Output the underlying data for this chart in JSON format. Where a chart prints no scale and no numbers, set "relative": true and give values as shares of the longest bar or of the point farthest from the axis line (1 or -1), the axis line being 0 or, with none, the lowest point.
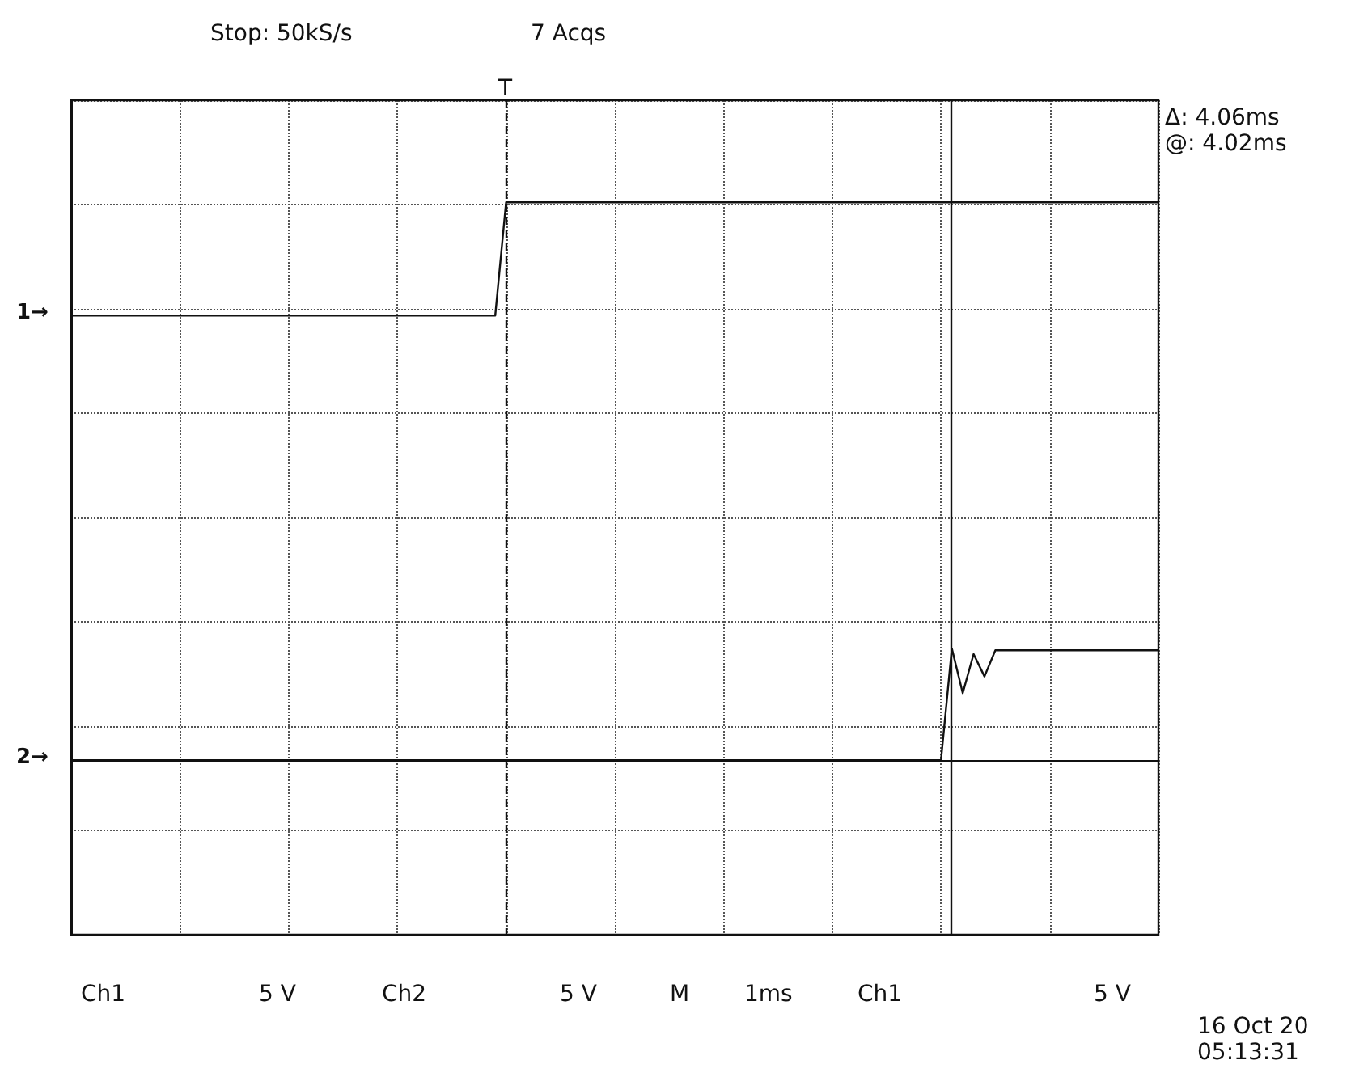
{
  "chart_data": {
    "type": "line",
    "relative": true,
    "categories": [
      null,
      null,
      null,
      null,
      null,
      null,
      null,
      null,
      null,
      null,
      null,
      null,
      null,
      null,
      null,
      null,
      null,
      null,
      null,
      null,
      null,
      null,
      null,
      null,
      null,
      null,
      null,
      null,
      null,
      null,
      null,
      null,
      null,
      null,
      null,
      null,
      null,
      null,
      null,
      null,
      null,
      null,
      null,
      null,
      null,
      null,
      null,
      null,
      null,
      null,
      null,
      null,
      null,
      null,
      null,
      null,
      null,
      null,
      null,
      null,
      null,
      null,
      null,
      null,
      null,
      null,
      null,
      null,
      null,
      null,
      null,
      null,
      null,
      null,
      null,
      null,
      null,
      null,
      null,
      null,
      null,
      null,
      null,
      null,
      null,
      null,
      null,
      null,
      null,
      null,
      null,
      null,
      null,
      null,
      null,
      null,
      null,
      null,
      null,
      null,
      null
    ],
    "grid": true,
    "legend": false,
    "marker": "none",
    "line_style": "solid",
    "series": [
      {
        "name": "1→",
        "color": "#111111",
        "values": [
          0.797,
          0.797,
          0.797,
          0.797,
          0.797,
          0.797,
          0.797,
          0.797,
          0.797,
          0.797,
          0.797,
          0.797,
          0.797,
          0.797,
          0.797,
          0.797,
          0.797,
          0.797,
          0.797,
          0.797,
          0.797,
          0.797,
          0.797,
          0.797,
          0.797,
          0.797,
          0.797,
          0.797,
          0.797,
          0.797,
          0.797,
          0.797,
          0.797,
          0.797,
          0.797,
          0.797,
          0.797,
          0.797,
          0.797,
          0.797,
          1,
          1,
          1,
          1,
          1,
          1,
          1,
          1,
          1,
          1,
          1,
          1,
          1,
          1,
          1,
          1,
          1,
          1,
          1,
          1,
          1,
          1,
          1,
          1,
          1,
          1,
          1,
          1,
          1,
          1,
          1,
          1,
          1,
          1,
          1,
          1,
          1,
          1,
          1,
          1,
          1,
          1,
          1,
          1,
          1,
          1,
          1,
          1,
          1,
          1,
          1,
          1,
          1,
          1,
          1,
          1,
          1,
          1,
          1,
          1,
          1
        ]
      },
      {
        "name": "2→",
        "color": "#111111",
        "values": [
          0,
          0,
          0,
          0,
          0,
          0,
          0,
          0,
          0,
          0,
          0,
          0,
          0,
          0,
          0,
          0,
          0,
          0,
          0,
          0,
          0,
          0,
          0,
          0,
          0,
          0,
          0,
          0,
          0,
          0,
          0,
          0,
          0,
          0,
          0,
          0,
          0,
          0,
          0,
          0,
          0,
          0,
          0,
          0,
          0,
          0,
          0,
          0,
          0,
          0,
          0,
          0,
          0,
          0,
          0,
          0,
          0,
          0,
          0,
          0,
          0,
          0,
          0,
          0,
          0,
          0,
          0,
          0,
          0,
          0,
          0,
          0,
          0,
          0,
          0,
          0,
          0,
          0,
          0,
          0,
          0,
          0.2,
          0.12,
          0.19,
          0.15,
          0.197,
          0.197,
          0.197,
          0.197,
          0.197,
          0.197,
          0.197,
          0.197,
          0.197,
          0.197,
          0.197,
          0.197,
          0.197,
          0.197,
          0.197,
          0.197
        ]
      }
    ],
    "annotations": [
      "T",
      "Stop: 50kS/s",
      "7 Acqs",
      "Δ: 4.06ms",
      "@: 4.02ms",
      "Ch1",
      "5 V",
      "Ch2",
      "5 V",
      "M",
      "1ms",
      "Ch1",
      "5 V",
      "16 Oct 20",
      "05:13:31"
    ]
  }
}
